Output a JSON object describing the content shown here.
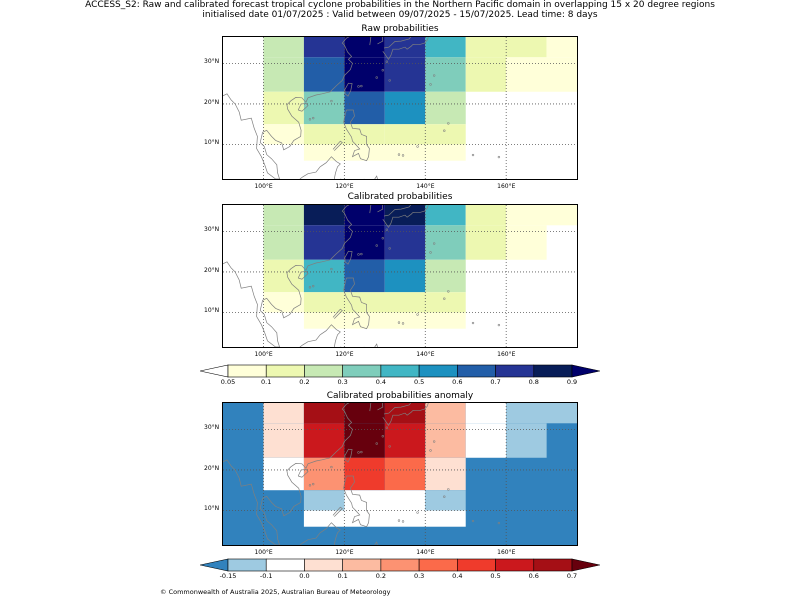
{
  "header": {
    "line1": "ACCESS_S2: Raw and calibrated forecast tropical cyclone probabilities in the Northern Pacific domain in overlapping 15 x 20 degree regions",
    "line2": "initialised date 01/07/2025 :  Valid between 09/07/2025 - 15/07/2025. Lead time: 8 days"
  },
  "footer": {
    "text": "© Commonwealth of Australia 2025, Australian Bureau of Meteorology"
  },
  "axes": {
    "lon_labels": [
      "100°E",
      "120°E",
      "140°E",
      "160°E"
    ],
    "lon_values": [
      100,
      120,
      140,
      160
    ],
    "lat_labels": [
      "30°N",
      "20°N",
      "10°N"
    ],
    "lat_values": [
      30,
      20,
      10
    ],
    "lon_range": [
      90,
      178
    ],
    "lat_range": [
      1,
      36.5
    ]
  },
  "colors": {
    "prob": [
      "#ffffd9",
      "#edf8b1",
      "#c7e9b4",
      "#7fcdbb",
      "#41b6c4",
      "#1d91c0",
      "#225ea8",
      "#253494",
      "#081d58",
      "#00006b"
    ],
    "anom": [
      "#3182bd",
      "#9ecae1",
      "#ffffff",
      "#fee0d2",
      "#fcbba1",
      "#fc9272",
      "#fb6a4a",
      "#ef3b2c",
      "#cb181d",
      "#a50f15",
      "#67000d"
    ]
  },
  "panels": [
    {
      "title": "Raw probabilities",
      "cells": [
        {
          "lon": [
            100,
            110
          ],
          "lat": [
            31.5,
            36.5
          ],
          "color": "#c7e9b4"
        },
        {
          "lon": [
            110,
            120
          ],
          "lat": [
            31.5,
            36.5
          ],
          "color": "#253494"
        },
        {
          "lon": [
            120,
            130
          ],
          "lat": [
            31.5,
            36.5
          ],
          "color": "#00006b"
        },
        {
          "lon": [
            130,
            140
          ],
          "lat": [
            31.5,
            36.5
          ],
          "color": "#253494"
        },
        {
          "lon": [
            140,
            150
          ],
          "lat": [
            31.5,
            36.5
          ],
          "color": "#41b6c4"
        },
        {
          "lon": [
            150,
            170
          ],
          "lat": [
            31.5,
            36.5
          ],
          "color": "#edf8b1"
        },
        {
          "lon": [
            170,
            178
          ],
          "lat": [
            31.5,
            36.5
          ],
          "color": "#ffffd9"
        },
        {
          "lon": [
            100,
            110
          ],
          "lat": [
            23,
            31.5
          ],
          "color": "#c7e9b4"
        },
        {
          "lon": [
            110,
            120
          ],
          "lat": [
            23,
            31.5
          ],
          "color": "#225ea8"
        },
        {
          "lon": [
            120,
            130
          ],
          "lat": [
            23,
            31.5
          ],
          "color": "#00006b"
        },
        {
          "lon": [
            130,
            140
          ],
          "lat": [
            23,
            31.5
          ],
          "color": "#253494"
        },
        {
          "lon": [
            140,
            150
          ],
          "lat": [
            23,
            31.5
          ],
          "color": "#7fcdbb"
        },
        {
          "lon": [
            150,
            160
          ],
          "lat": [
            23,
            31.5
          ],
          "color": "#edf8b1"
        },
        {
          "lon": [
            160,
            178
          ],
          "lat": [
            23,
            31.5
          ],
          "color": "#ffffd9"
        },
        {
          "lon": [
            100,
            110
          ],
          "lat": [
            15,
            23
          ],
          "color": "#edf8b1"
        },
        {
          "lon": [
            110,
            120
          ],
          "lat": [
            15,
            23
          ],
          "color": "#7fcdbb"
        },
        {
          "lon": [
            120,
            130
          ],
          "lat": [
            15,
            23
          ],
          "color": "#225ea8"
        },
        {
          "lon": [
            130,
            140
          ],
          "lat": [
            15,
            23
          ],
          "color": "#1d91c0"
        },
        {
          "lon": [
            140,
            150
          ],
          "lat": [
            15,
            23
          ],
          "color": "#c7e9b4"
        },
        {
          "lon": [
            100,
            110
          ],
          "lat": [
            10,
            15
          ],
          "color": "#ffffd9"
        },
        {
          "lon": [
            110,
            130
          ],
          "lat": [
            10,
            15
          ],
          "color": "#edf8b1"
        },
        {
          "lon": [
            130,
            150
          ],
          "lat": [
            10,
            15
          ],
          "color": "#edf8b1"
        },
        {
          "lon": [
            110,
            150
          ],
          "lat": [
            6,
            10
          ],
          "color": "#ffffd9"
        }
      ]
    },
    {
      "title": "Calibrated probabilities",
      "cells": [
        {
          "lon": [
            100,
            110
          ],
          "lat": [
            31.5,
            36.5
          ],
          "color": "#c7e9b4"
        },
        {
          "lon": [
            110,
            120
          ],
          "lat": [
            31.5,
            36.5
          ],
          "color": "#081d58"
        },
        {
          "lon": [
            120,
            130
          ],
          "lat": [
            31.5,
            36.5
          ],
          "color": "#00006b"
        },
        {
          "lon": [
            130,
            140
          ],
          "lat": [
            31.5,
            36.5
          ],
          "color": "#081d58"
        },
        {
          "lon": [
            140,
            150
          ],
          "lat": [
            31.5,
            36.5
          ],
          "color": "#41b6c4"
        },
        {
          "lon": [
            150,
            160
          ],
          "lat": [
            31.5,
            36.5
          ],
          "color": "#edf8b1"
        },
        {
          "lon": [
            160,
            178
          ],
          "lat": [
            31.5,
            36.5
          ],
          "color": "#ffffd9"
        },
        {
          "lon": [
            100,
            110
          ],
          "lat": [
            23,
            31.5
          ],
          "color": "#c7e9b4"
        },
        {
          "lon": [
            110,
            120
          ],
          "lat": [
            23,
            31.5
          ],
          "color": "#253494"
        },
        {
          "lon": [
            120,
            130
          ],
          "lat": [
            23,
            31.5
          ],
          "color": "#00006b"
        },
        {
          "lon": [
            130,
            140
          ],
          "lat": [
            23,
            31.5
          ],
          "color": "#253494"
        },
        {
          "lon": [
            140,
            150
          ],
          "lat": [
            23,
            31.5
          ],
          "color": "#7fcdbb"
        },
        {
          "lon": [
            150,
            160
          ],
          "lat": [
            23,
            31.5
          ],
          "color": "#edf8b1"
        },
        {
          "lon": [
            160,
            170
          ],
          "lat": [
            23,
            31.5
          ],
          "color": "#ffffd9"
        },
        {
          "lon": [
            100,
            110
          ],
          "lat": [
            15,
            23
          ],
          "color": "#edf8b1"
        },
        {
          "lon": [
            110,
            120
          ],
          "lat": [
            15,
            23
          ],
          "color": "#41b6c4"
        },
        {
          "lon": [
            120,
            130
          ],
          "lat": [
            15,
            23
          ],
          "color": "#225ea8"
        },
        {
          "lon": [
            130,
            140
          ],
          "lat": [
            15,
            23
          ],
          "color": "#1d91c0"
        },
        {
          "lon": [
            140,
            150
          ],
          "lat": [
            15,
            23
          ],
          "color": "#c7e9b4"
        },
        {
          "lon": [
            100,
            110
          ],
          "lat": [
            10,
            15
          ],
          "color": "#ffffd9"
        },
        {
          "lon": [
            110,
            150
          ],
          "lat": [
            10,
            15
          ],
          "color": "#edf8b1"
        },
        {
          "lon": [
            110,
            150
          ],
          "lat": [
            6,
            10
          ],
          "color": "#ffffd9"
        }
      ]
    },
    {
      "title": "Calibrated probabilities anomaly",
      "background": "#3182bd",
      "cells": [
        {
          "lon": [
            100,
            110
          ],
          "lat": [
            31.5,
            36.5
          ],
          "color": "#fee0d2"
        },
        {
          "lon": [
            110,
            120
          ],
          "lat": [
            31.5,
            36.5
          ],
          "color": "#a50f15"
        },
        {
          "lon": [
            120,
            130
          ],
          "lat": [
            31.5,
            36.5
          ],
          "color": "#67000d"
        },
        {
          "lon": [
            130,
            140
          ],
          "lat": [
            31.5,
            36.5
          ],
          "color": "#a50f15"
        },
        {
          "lon": [
            140,
            150
          ],
          "lat": [
            31.5,
            36.5
          ],
          "color": "#fcbba1"
        },
        {
          "lon": [
            150,
            160
          ],
          "lat": [
            31.5,
            36.5
          ],
          "color": "#ffffff"
        },
        {
          "lon": [
            160,
            178
          ],
          "lat": [
            31.5,
            36.5
          ],
          "color": "#9ecae1"
        },
        {
          "lon": [
            100,
            110
          ],
          "lat": [
            23,
            31.5
          ],
          "color": "#fee0d2"
        },
        {
          "lon": [
            110,
            120
          ],
          "lat": [
            23,
            31.5
          ],
          "color": "#cb181d"
        },
        {
          "lon": [
            120,
            130
          ],
          "lat": [
            23,
            31.5
          ],
          "color": "#67000d"
        },
        {
          "lon": [
            130,
            140
          ],
          "lat": [
            23,
            31.5
          ],
          "color": "#cb181d"
        },
        {
          "lon": [
            140,
            150
          ],
          "lat": [
            23,
            31.5
          ],
          "color": "#fcbba1"
        },
        {
          "lon": [
            150,
            160
          ],
          "lat": [
            23,
            31.5
          ],
          "color": "#ffffff"
        },
        {
          "lon": [
            160,
            170
          ],
          "lat": [
            23,
            31.5
          ],
          "color": "#9ecae1"
        },
        {
          "lon": [
            100,
            110
          ],
          "lat": [
            15,
            23
          ],
          "color": "#ffffff"
        },
        {
          "lon": [
            110,
            120
          ],
          "lat": [
            15,
            23
          ],
          "color": "#fc9272"
        },
        {
          "lon": [
            120,
            130
          ],
          "lat": [
            15,
            23
          ],
          "color": "#ef3b2c"
        },
        {
          "lon": [
            130,
            140
          ],
          "lat": [
            15,
            23
          ],
          "color": "#fb6a4a"
        },
        {
          "lon": [
            140,
            150
          ],
          "lat": [
            15,
            23
          ],
          "color": "#fee0d2"
        },
        {
          "lon": [
            110,
            120
          ],
          "lat": [
            10,
            15
          ],
          "color": "#9ecae1"
        },
        {
          "lon": [
            120,
            140
          ],
          "lat": [
            10,
            15
          ],
          "color": "#ffffff"
        },
        {
          "lon": [
            140,
            150
          ],
          "lat": [
            10,
            15
          ],
          "color": "#9ecae1"
        },
        {
          "lon": [
            110,
            150
          ],
          "lat": [
            6,
            10
          ],
          "color": "#ffffff"
        }
      ]
    }
  ],
  "colorbars": [
    {
      "name": "prob",
      "ticks": [
        "0.05",
        "0.1",
        "0.2",
        "0.3",
        "0.4",
        "0.5",
        "0.6",
        "0.7",
        "0.8",
        "0.9"
      ],
      "extend_low_color": "#ffffff",
      "segments": [
        "#ffffd9",
        "#edf8b1",
        "#c7e9b4",
        "#7fcdbb",
        "#41b6c4",
        "#1d91c0",
        "#225ea8",
        "#253494",
        "#081d58"
      ],
      "extend_high_color": "#00006b"
    },
    {
      "name": "anom",
      "ticks": [
        "-0.15",
        "-0.1",
        "0.0",
        "0.1",
        "0.2",
        "0.3",
        "0.4",
        "0.5",
        "0.6",
        "0.7"
      ],
      "extend_low_color": "#3182bd",
      "segments": [
        "#9ecae1",
        "#ffffff",
        "#fee0d2",
        "#fcbba1",
        "#fc9272",
        "#fb6a4a",
        "#ef3b2c",
        "#cb181d",
        "#a50f15"
      ],
      "extend_high_color": "#67000d"
    }
  ]
}
